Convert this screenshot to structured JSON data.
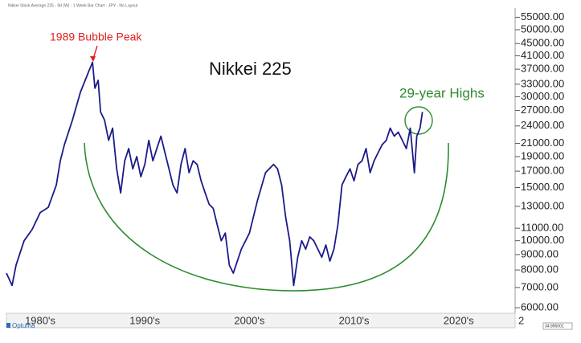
{
  "header": "Nikkei Stock Average 225 - 9d (W) - 1 Week Bar Chart - JPY - No Layout",
  "logo": "Optuma",
  "status_value": "34.895001",
  "chart_data": {
    "type": "line",
    "title": "Nikkei 225",
    "annotations": [
      "1989 Bubble Peak",
      "29-year Highs"
    ],
    "log": true,
    "grid": false,
    "xlim": [
      1981.77,
      2030.4
    ],
    "xticks": [
      {
        "value": 1985,
        "label": "1980's"
      },
      {
        "value": 1995,
        "label": "1990's"
      },
      {
        "value": 2005,
        "label": "2000's"
      },
      {
        "value": 2015,
        "label": "2010's"
      },
      {
        "value": 2025,
        "label": "2020's"
      },
      {
        "value": 2030.4,
        "label": "2"
      }
    ],
    "ylim": [
      5750,
      59000
    ],
    "yticks": [
      {
        "value": 55000,
        "label": "55000.00"
      },
      {
        "value": 50000,
        "label": "50000.00"
      },
      {
        "value": 45000,
        "label": "45000.00"
      },
      {
        "value": 41000,
        "label": "41000.00"
      },
      {
        "value": 37000,
        "label": "37000.00"
      },
      {
        "value": 33000,
        "label": "33000.00"
      },
      {
        "value": 30000,
        "label": "30000.00"
      },
      {
        "value": 27000,
        "label": "27000.00"
      },
      {
        "value": 24000,
        "label": "24000.00"
      },
      {
        "value": 21000,
        "label": "21000.00"
      },
      {
        "value": 19000,
        "label": "19000.00"
      },
      {
        "value": 17000,
        "label": "17000.00"
      },
      {
        "value": 15000,
        "label": "15000.00"
      },
      {
        "value": 13000,
        "label": "13000.00"
      },
      {
        "value": 11000,
        "label": "11000.00"
      },
      {
        "value": 10000,
        "label": "10000.00"
      },
      {
        "value": 9000,
        "label": "9000.00"
      },
      {
        "value": 8000,
        "label": "8000.00"
      },
      {
        "value": 7000,
        "label": "7000.00"
      },
      {
        "value": 6000,
        "label": "6000.00"
      }
    ],
    "x": [
      1981.77,
      1982.31,
      1982.69,
      1983.46,
      1984.23,
      1985.0,
      1985.77,
      1986.54,
      1986.92,
      1987.31,
      1988.08,
      1988.85,
      1989.62,
      1990.0,
      1990.23,
      1990.54,
      1990.77,
      1991.15,
      1991.54,
      1991.92,
      1992.31,
      1992.69,
      1993.08,
      1993.46,
      1993.85,
      1994.23,
      1994.62,
      1995.0,
      1995.38,
      1995.77,
      1996.15,
      1996.54,
      1996.92,
      1997.31,
      1997.69,
      1998.08,
      1998.46,
      1998.85,
      1999.23,
      1999.62,
      2000.0,
      2000.38,
      2000.77,
      2001.15,
      2001.54,
      2001.92,
      2002.31,
      2002.69,
      2003.08,
      2003.46,
      2004.23,
      2005.0,
      2005.77,
      2006.54,
      2007.31,
      2007.69,
      2008.08,
      2008.46,
      2008.85,
      2009.23,
      2009.62,
      2010.0,
      2010.38,
      2010.77,
      2011.15,
      2011.54,
      2011.92,
      2012.31,
      2012.69,
      2013.08,
      2013.46,
      2013.85,
      2014.23,
      2014.62,
      2015.0,
      2015.38,
      2015.77,
      2016.15,
      2016.54,
      2016.92,
      2017.31,
      2017.69,
      2018.08,
      2018.46,
      2018.85,
      2019.23,
      2019.62,
      2020.0,
      2020.38,
      2020.77,
      2021.0,
      2021.31,
      2021.54
    ],
    "series": [
      {
        "name": "Nikkei 225",
        "color": "#1b1b8a",
        "values": [
          7810,
          7110,
          8300,
          10000,
          10900,
          12400,
          12900,
          15300,
          18400,
          20800,
          25100,
          31100,
          36250,
          39000,
          32000,
          34000,
          26700,
          25100,
          21500,
          23600,
          17300,
          14400,
          18400,
          20200,
          17300,
          19000,
          16300,
          17900,
          21500,
          18400,
          20200,
          22200,
          19600,
          17300,
          15300,
          14400,
          17900,
          20200,
          16800,
          18400,
          17900,
          15800,
          14400,
          13200,
          12800,
          11300,
          10000,
          10600,
          8300,
          7810,
          9380,
          10600,
          13600,
          16800,
          17900,
          17300,
          15300,
          12000,
          10000,
          7110,
          8820,
          10000,
          9380,
          10300,
          10000,
          9380,
          8820,
          9680,
          8560,
          9380,
          11300,
          15300,
          16300,
          17300,
          15800,
          17900,
          18400,
          20200,
          16800,
          18400,
          19600,
          20800,
          21500,
          23600,
          22200,
          22900,
          21500,
          20200,
          23600,
          16800,
          22200,
          23600,
          26700
        ]
      }
    ]
  }
}
